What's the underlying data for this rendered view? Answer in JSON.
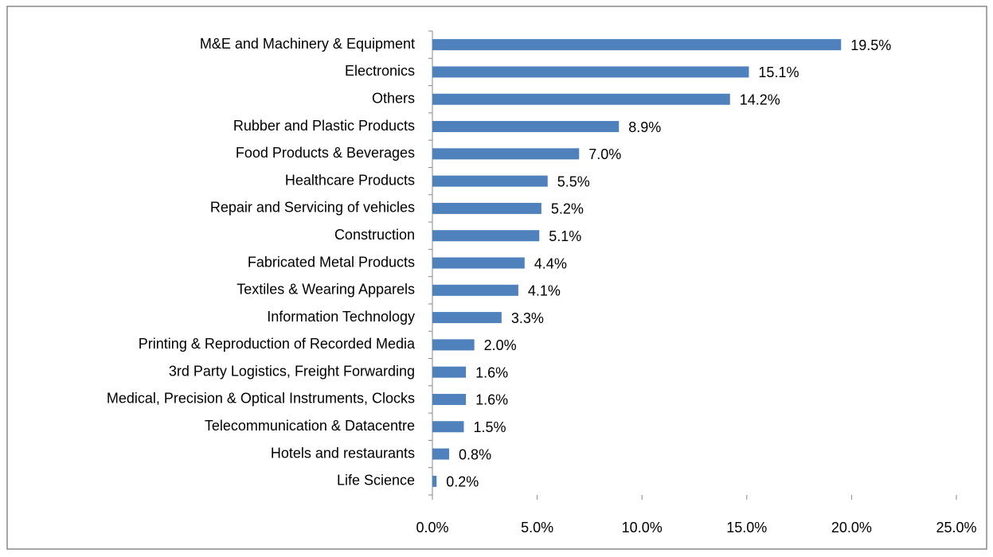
{
  "chart_data": {
    "type": "bar",
    "orientation": "horizontal",
    "categories": [
      "M&E and Machinery & Equipment",
      "Electronics",
      "Others",
      "Rubber and Plastic Products",
      "Food Products & Beverages",
      "Healthcare Products",
      "Repair and Servicing of vehicles",
      "Construction",
      "Fabricated Metal Products",
      "Textiles & Wearing Apparels",
      "Information Technology",
      "Printing & Reproduction of Recorded Media",
      "3rd Party Logistics, Freight Forwarding",
      "Medical, Precision & Optical Instruments, Clocks",
      "Telecommunication & Datacentre",
      "Hotels and restaurants",
      "Life Science"
    ],
    "values": [
      19.5,
      15.1,
      14.2,
      8.9,
      7.0,
      5.5,
      5.2,
      5.1,
      4.4,
      4.1,
      3.3,
      2.0,
      1.6,
      1.6,
      1.5,
      0.8,
      0.2
    ],
    "value_labels": [
      "19.5%",
      "15.1%",
      "14.2%",
      "8.9%",
      "7.0%",
      "5.5%",
      "5.2%",
      "5.1%",
      "4.4%",
      "4.1%",
      "3.3%",
      "2.0%",
      "1.6%",
      "1.6%",
      "1.5%",
      "0.8%",
      "0.2%"
    ],
    "color": "#4f81bd",
    "xlim": [
      0,
      25
    ],
    "xticks": [
      {
        "value": 0,
        "label": "0.0%"
      },
      {
        "value": 5,
        "label": "5.0%"
      },
      {
        "value": 10,
        "label": "10.0%"
      },
      {
        "value": 15,
        "label": "15.0%"
      },
      {
        "value": 20,
        "label": "20.0%"
      },
      {
        "value": 25,
        "label": "25.0%"
      }
    ],
    "grid": false
  }
}
